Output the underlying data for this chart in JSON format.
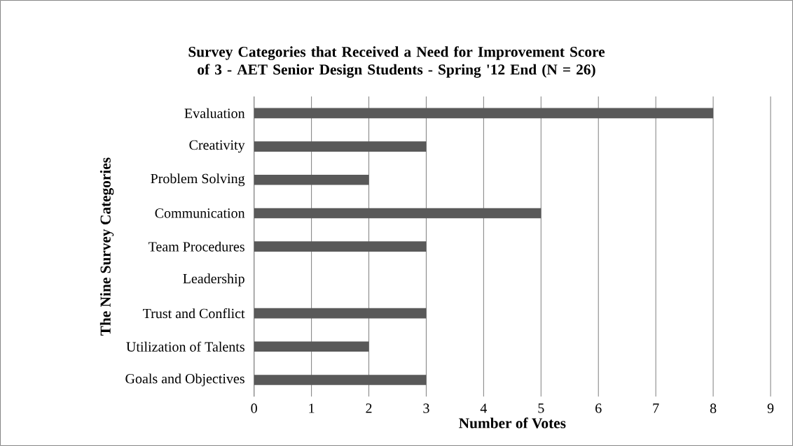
{
  "chart_data": {
    "type": "bar",
    "orientation": "horizontal",
    "title": "Survey Categories that Received a Need for Improvement Score of 3 - AET Senior Design Students - Spring '12 End (N = 26)",
    "xlabel": "Number of Votes",
    "ylabel": "The Nine Survey Categories",
    "categories": [
      "Evaluation",
      "Creativity",
      "Problem Solving",
      "Communication",
      "Team Procedures",
      "Leadership",
      "Trust and Conflict",
      "Utilization of Talents",
      "Goals and Objectives"
    ],
    "values": [
      8,
      3,
      2,
      5,
      3,
      0,
      3,
      2,
      3
    ],
    "color": "#595959",
    "xlim": [
      0,
      9
    ],
    "xticks": [
      0,
      1,
      2,
      3,
      4,
      5,
      6,
      7,
      8,
      9
    ],
    "grid": "x"
  }
}
